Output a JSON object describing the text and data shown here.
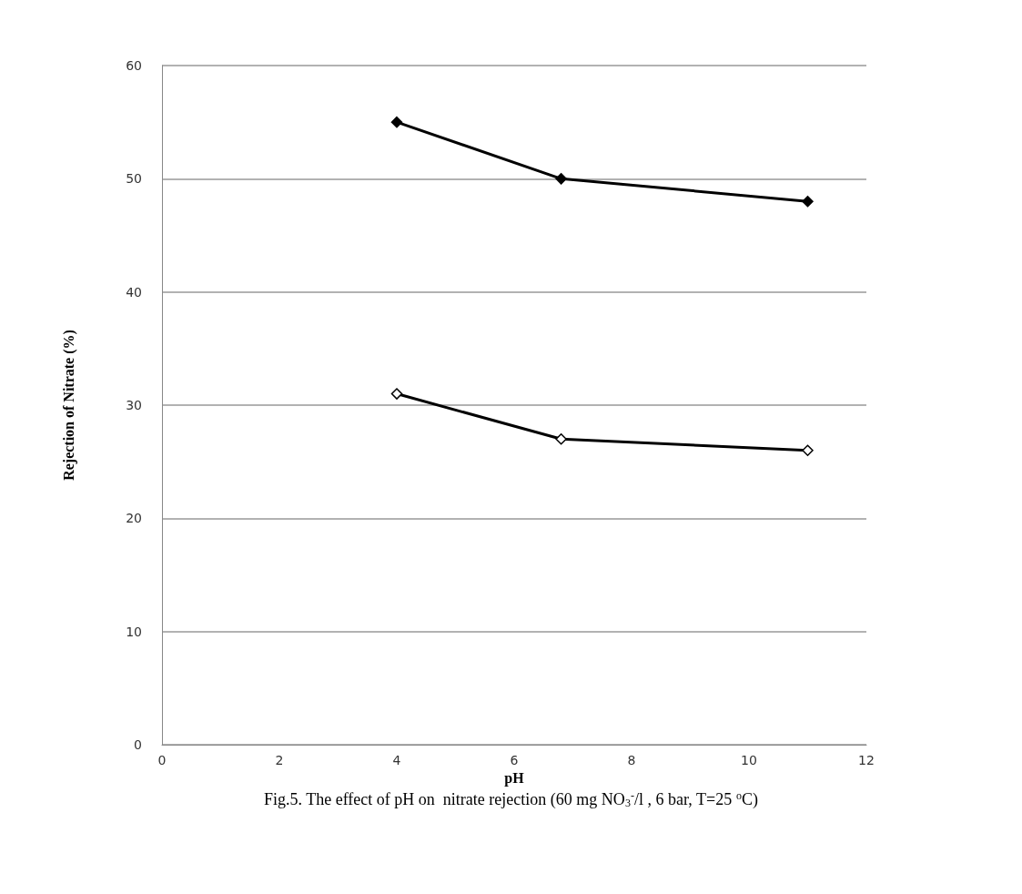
{
  "chart_data": {
    "type": "line",
    "xlabel": "pH",
    "ylabel": "Rejection of Nitrate (%)",
    "annotations": [
      "Fig.5. The effect of pH on  nitrate rejection (60 mg NO$_{3}$$^{-}$/l , 6 bar, T=25 $^{o}$C)"
    ],
    "xlim": [
      0,
      12
    ],
    "xticks": [
      0,
      2,
      4,
      6,
      8,
      10,
      12
    ],
    "ylim": [
      0,
      60
    ],
    "yticks": [
      0,
      10,
      20,
      30,
      40,
      50,
      60
    ],
    "grid": "y",
    "marker": "diamond",
    "line_style": "solid",
    "series": [
      {
        "color": "#000000",
        "x": [
          4,
          6.8,
          11
        ],
        "values": [
          55,
          50,
          48
        ]
      },
      {
        "color": "#000000",
        "x": [
          4,
          6.8,
          11
        ],
        "values": [
          31,
          27,
          26
        ]
      }
    ]
  }
}
